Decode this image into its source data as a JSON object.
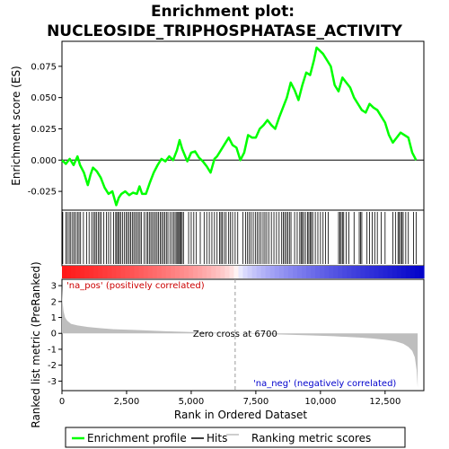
{
  "chart_data": {
    "type": "line",
    "title_line1": "Enrichment plot:",
    "title_line2": "NUCLEOSIDE_TRIPHOSPHATASE_ACTIVITY",
    "top_panel": {
      "ylabel": "Enrichment score (ES)",
      "ylim": [
        -0.04,
        0.095
      ],
      "yticks": [
        "0.075",
        "0.050",
        "0.025",
        "0.000",
        "-0.025"
      ],
      "ytick_values": [
        0.075,
        0.05,
        0.025,
        0.0,
        -0.025
      ],
      "series": [
        {
          "name": "Enrichment profile",
          "color": "#00ff00",
          "x": [
            0,
            150,
            300,
            450,
            600,
            700,
            850,
            1000,
            1100,
            1200,
            1350,
            1500,
            1650,
            1800,
            1950,
            2100,
            2200,
            2300,
            2450,
            2600,
            2750,
            2900,
            3000,
            3100,
            3250,
            3400,
            3550,
            3700,
            3850,
            4000,
            4150,
            4300,
            4450,
            4550,
            4650,
            4750,
            4850,
            5000,
            5150,
            5300,
            5450,
            5600,
            5750,
            5900,
            6000,
            6150,
            6300,
            6450,
            6600,
            6750,
            6900,
            7050,
            7200,
            7350,
            7500,
            7650,
            7800,
            7950,
            8100,
            8250,
            8400,
            8550,
            8700,
            8850,
            9000,
            9150,
            9300,
            9450,
            9600,
            9750,
            9850,
            9950,
            10100,
            10250,
            10400,
            10550,
            10700,
            10850,
            11000,
            11150,
            11300,
            11450,
            11600,
            11750,
            11900,
            12050,
            12200,
            12350,
            12500,
            12650,
            12800,
            12950,
            13100,
            13250,
            13400,
            13550,
            13700
          ],
          "y": [
            0.0,
            -0.003,
            0.001,
            -0.004,
            0.003,
            -0.004,
            -0.01,
            -0.02,
            -0.012,
            -0.006,
            -0.009,
            -0.014,
            -0.022,
            -0.027,
            -0.025,
            -0.036,
            -0.03,
            -0.027,
            -0.025,
            -0.028,
            -0.026,
            -0.027,
            -0.021,
            -0.027,
            -0.027,
            -0.018,
            -0.01,
            -0.004,
            0.001,
            -0.001,
            0.003,
            0.0,
            0.008,
            0.016,
            0.009,
            0.004,
            -0.001,
            0.006,
            0.007,
            0.002,
            -0.001,
            -0.005,
            -0.01,
            0.001,
            0.003,
            0.008,
            0.013,
            0.018,
            0.012,
            0.01,
            0.0,
            0.006,
            0.02,
            0.018,
            0.018,
            0.025,
            0.028,
            0.032,
            0.028,
            0.025,
            0.034,
            0.042,
            0.05,
            0.062,
            0.056,
            0.048,
            0.06,
            0.07,
            0.068,
            0.08,
            0.09,
            0.088,
            0.085,
            0.08,
            0.075,
            0.06,
            0.055,
            0.066,
            0.062,
            0.058,
            0.05,
            0.045,
            0.04,
            0.038,
            0.045,
            0.042,
            0.04,
            0.035,
            0.03,
            0.02,
            0.014,
            0.018,
            0.022,
            0.02,
            0.018,
            0.006,
            0.0
          ]
        }
      ]
    },
    "hits_panel": {
      "hit_positions": [
        30,
        150,
        210,
        280,
        340,
        410,
        470,
        530,
        600,
        660,
        720,
        830,
        950,
        1050,
        1150,
        1220,
        1280,
        1330,
        1400,
        1460,
        1520,
        1620,
        1720,
        1800,
        1880,
        2000,
        2080,
        2120,
        2180,
        2220,
        2280,
        2350,
        2420,
        2480,
        2540,
        2600,
        2660,
        2720,
        2780,
        2840,
        2900,
        2960,
        3020,
        3080,
        3180,
        3260,
        3320,
        3380,
        3440,
        3500,
        3560,
        3620,
        3680,
        3740,
        3800,
        3860,
        3920,
        3980,
        4040,
        4100,
        4180,
        4260,
        4320,
        4380,
        4440,
        4480,
        4520,
        4560,
        4600,
        4650,
        4700,
        4900,
        5000,
        5100,
        5200,
        5350,
        5500,
        5600,
        5700,
        5800,
        5900,
        6000,
        6100,
        6150,
        6200,
        6280,
        6350,
        6450,
        6520,
        6600,
        6700,
        6800,
        7000,
        7100,
        7180,
        7250,
        7320,
        7400,
        7480,
        7550,
        7620,
        7700,
        7780,
        7850,
        7920,
        8000,
        8100,
        8200,
        8300,
        8400,
        8500,
        8560,
        8620,
        8680,
        8740,
        8800,
        8860,
        9000,
        9100,
        9200,
        9250,
        9300,
        9350,
        9420,
        9500,
        9550,
        9600,
        9650,
        9700,
        9800,
        9900,
        10000,
        10100,
        10200,
        10300,
        10700,
        10750,
        10800,
        10850,
        10900,
        11000,
        11100,
        11300,
        11500,
        11550,
        11600,
        11800,
        11900,
        12000,
        12100,
        12200,
        12350,
        12500,
        12800,
        12900,
        13000,
        13050,
        13100,
        13150,
        13200,
        13300,
        13400,
        13600,
        13700
      ]
    },
    "ranking_panel": {
      "ylabel": "Ranked list metric (PreRanked)",
      "xlabel": "Rank in Ordered Dataset",
      "ylim": [
        -3.6,
        3.4
      ],
      "yticks": [
        "3",
        "2",
        "1",
        "0",
        "-1",
        "-2",
        "-3"
      ],
      "ytick_values": [
        3,
        2,
        1,
        0,
        -1,
        -2,
        -3
      ],
      "xticks": [
        "0",
        "2,500",
        "5,000",
        "7,500",
        "10,000",
        "12,500"
      ],
      "xtick_values": [
        0,
        2500,
        5000,
        7500,
        10000,
        12500
      ],
      "xlim": [
        0,
        14000
      ],
      "metric_x": [
        0,
        20,
        60,
        120,
        200,
        350,
        600,
        1000,
        1500,
        2000,
        3000,
        4000,
        5000,
        6000,
        6700,
        7500,
        8500,
        9500,
        10500,
        11500,
        12000,
        12500,
        12900,
        13200,
        13400,
        13550,
        13650,
        13720,
        13760
      ],
      "metric_y": [
        2.9,
        2.0,
        1.4,
        1.0,
        0.8,
        0.6,
        0.5,
        0.4,
        0.32,
        0.26,
        0.2,
        0.13,
        0.08,
        0.04,
        0.0,
        -0.03,
        -0.07,
        -0.12,
        -0.18,
        -0.26,
        -0.32,
        -0.4,
        -0.5,
        -0.65,
        -0.85,
        -1.1,
        -1.5,
        -2.3,
        -3.4
      ],
      "metric_color": "#bebebe",
      "zero_cross_label": "Zero cross at 6700",
      "zero_cross": 6700,
      "pos_label": "'na_pos' (positively correlated)",
      "neg_label": "'na_neg' (negatively correlated)",
      "pos_color": "#cc0000",
      "neg_color": "#0000cc"
    },
    "legend": {
      "placement": "bottom",
      "items": [
        {
          "label": "Enrichment profile",
          "color": "#00ff00"
        },
        {
          "label": "Hits",
          "color": "#000000"
        },
        {
          "label": "Ranking metric scores",
          "color": "#bebebe"
        }
      ]
    }
  }
}
